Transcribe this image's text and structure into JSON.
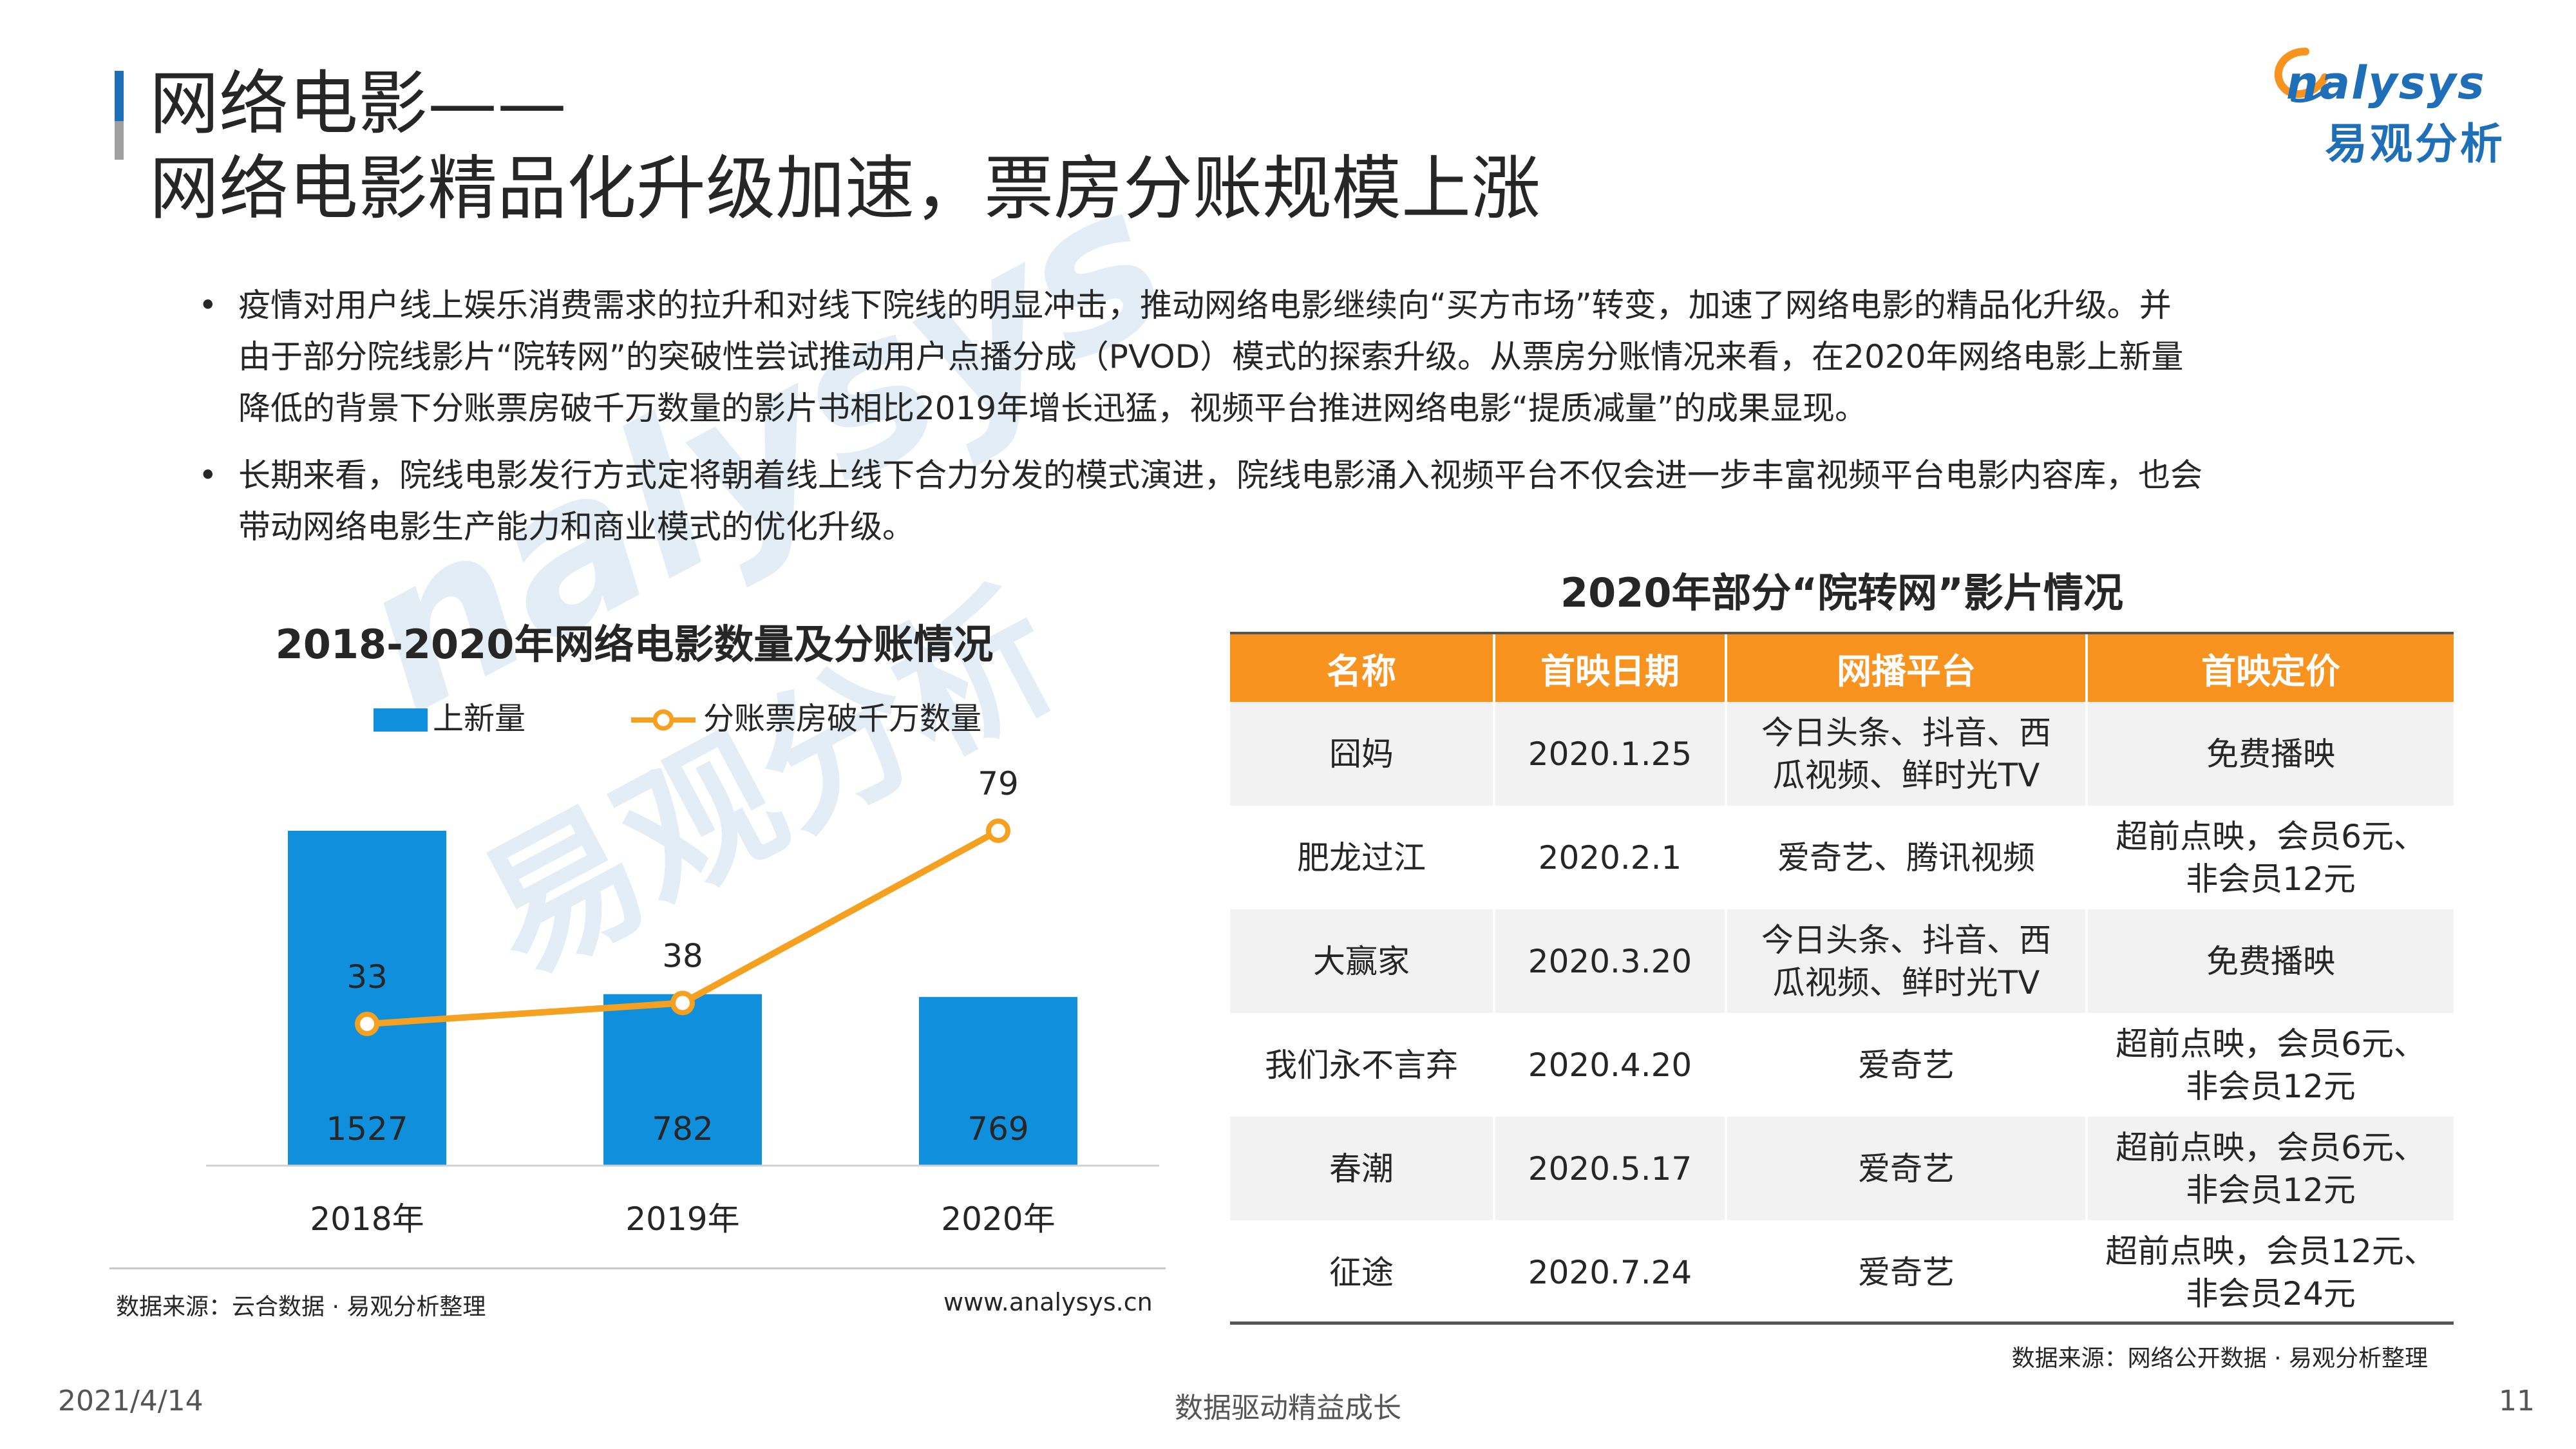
{
  "title": {
    "line1": "网络电影——",
    "line2": "网络电影精品化升级加速，票房分账规模上涨"
  },
  "logo": {
    "brand_en": "nalysys",
    "brand_cn": "易观分析",
    "watermark_en": "nalysys",
    "watermark_cn": "易观分析"
  },
  "bullets": [
    {
      "marker": "•",
      "lines": [
        "疫情对用户线上娱乐消费需求的拉升和对线下院线的明显冲击，推动网络电影继续向“买方市场”转变，加速了网络电影的精品化升级。并",
        "由于部分院线影片“院转网”的突破性尝试推动用户点播分成（PVOD）模式的探索升级。从票房分账情况来看，在2020年网络电影上新量",
        "降低的背景下分账票房破千万数量的影片书相比2019年增长迅猛，视频平台推进网络电影“提质减量”的成果显现。"
      ]
    },
    {
      "marker": "•",
      "lines": [
        "长期来看，院线电影发行方式定将朝着线上线下合力分发的模式演进，院线电影涌入视频平台不仅会进一步丰富视频平台电影内容库，也会",
        "带动网络电影生产能力和商业模式的优化升级。"
      ]
    }
  ],
  "chart_data": {
    "type": "bar",
    "title": "2018-2020年网络电影数量及分账情况",
    "categories": [
      "2018年",
      "2019年",
      "2020年"
    ],
    "series": [
      {
        "name": "上新量",
        "type": "bar",
        "values": [
          1527,
          782,
          769
        ],
        "color": "#0f8fdc"
      },
      {
        "name": "分账票房破千万数量",
        "type": "line",
        "values": [
          33,
          38,
          79
        ],
        "color": "#f5a01e"
      }
    ],
    "legend": "top-left",
    "grid": false
  },
  "chart_footer": {
    "source": "数据来源：云合数据 · 易观分析整理",
    "url": "www.analysys.cn"
  },
  "table": {
    "title": "2020年部分“院转网”影片情况",
    "headers": [
      "名称",
      "首映日期",
      "网播平台",
      "首映定价"
    ],
    "rows": [
      {
        "name": "囧妈",
        "date": "2020.1.25",
        "platform": [
          "今日头条、抖音、西",
          "瓜视频、鲜时光TV"
        ],
        "price": [
          "免费播映"
        ]
      },
      {
        "name": "肥龙过江",
        "date": "2020.2.1",
        "platform": [
          "爱奇艺、腾讯视频"
        ],
        "price": [
          "超前点映，会员6元、",
          "非会员12元"
        ]
      },
      {
        "name": "大赢家",
        "date": "2020.3.20",
        "platform": [
          "今日头条、抖音、西",
          "瓜视频、鲜时光TV"
        ],
        "price": [
          "免费播映"
        ]
      },
      {
        "name": "我们永不言弃",
        "date": "2020.4.20",
        "platform": [
          "爱奇艺"
        ],
        "price": [
          "超前点映，会员6元、",
          "非会员12元"
        ]
      },
      {
        "name": "春潮",
        "date": "2020.5.17",
        "platform": [
          "爱奇艺"
        ],
        "price": [
          "超前点映，会员6元、",
          "非会员12元"
        ]
      },
      {
        "name": "征途",
        "date": "2020.7.24",
        "platform": [
          "爱奇艺"
        ],
        "price": [
          "超前点映，会员12元、",
          "非会员24元"
        ]
      }
    ],
    "source": "数据来源：网络公开数据 · 易观分析整理"
  },
  "footer": {
    "date": "2021/4/14",
    "center": "数据驱动精益成长",
    "page": "11"
  }
}
